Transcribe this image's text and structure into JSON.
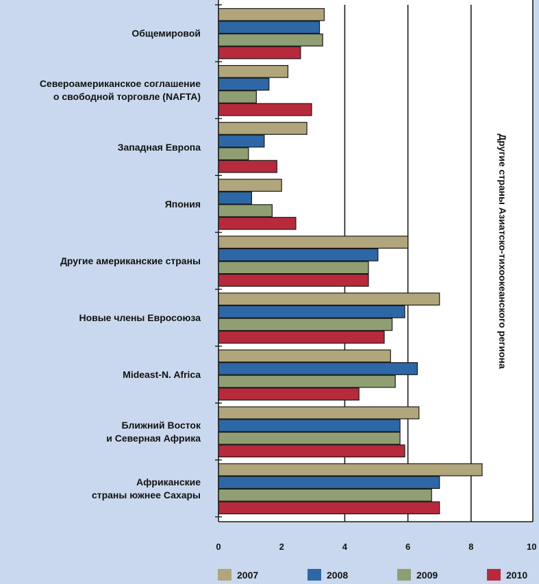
{
  "chart_data": {
    "type": "bar",
    "orientation": "horizontal",
    "categories": [
      [
        "Общемировой"
      ],
      [
        "Североамериканское соглашение",
        "о свободной торговле (NAFTA)"
      ],
      [
        "Западная Европа"
      ],
      [
        "Япония"
      ],
      [
        "Другие американские страны"
      ],
      [
        "Новые члены Евросоюза"
      ],
      [
        "Mideast-N. Africa"
      ],
      [
        "Ближний Восток",
        "и Северная Африка"
      ],
      [
        "Африканские",
        "страны южнее Сахары"
      ]
    ],
    "series": [
      {
        "name": "2007",
        "color": "#b1a57c",
        "values": [
          3.35,
          2.2,
          2.8,
          2.0,
          6.0,
          7.0,
          5.45,
          6.35,
          8.35
        ]
      },
      {
        "name": "2008",
        "color": "#2e67a6",
        "values": [
          3.2,
          1.6,
          1.45,
          1.05,
          5.05,
          5.9,
          6.3,
          5.75,
          7.0
        ]
      },
      {
        "name": "2009",
        "color": "#8f9f73",
        "values": [
          3.3,
          1.2,
          0.95,
          1.7,
          4.75,
          5.5,
          5.6,
          5.75,
          6.75
        ]
      },
      {
        "name": "2010",
        "color": "#b72a3c",
        "values": [
          2.6,
          2.95,
          1.85,
          2.45,
          4.75,
          5.25,
          4.45,
          5.9,
          7.0
        ]
      }
    ],
    "xlim": [
      0,
      10
    ],
    "xticks": [
      "0",
      "2",
      "4",
      "6",
      "8",
      "10"
    ],
    "grid": true,
    "legend_position": "bottom",
    "annotation": "Другие страны Азиатско-тихоокеанского региона"
  },
  "colors": {
    "background": "#c9d8ee",
    "plot_background": "#ffffff"
  }
}
